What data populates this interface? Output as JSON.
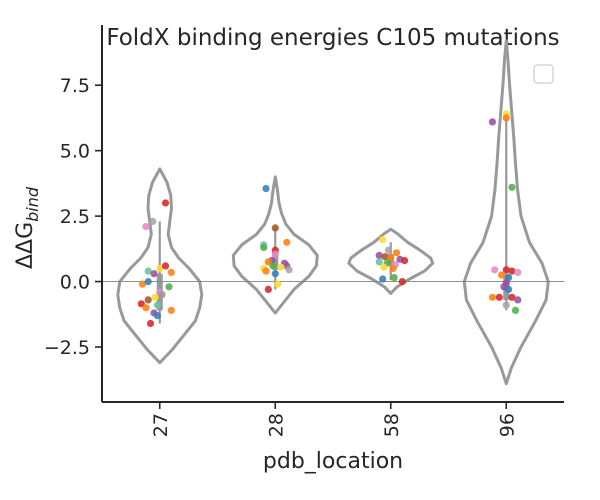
{
  "chart_data": {
    "type": "violin",
    "title": "FoldX binding energies C105 mutations",
    "xlabel": "pdb_location",
    "ylabel": "ΔΔG",
    "ylabel_subscript": "bind",
    "categories": [
      "27",
      "28",
      "58",
      "96"
    ],
    "y_ticks": [
      -2.5,
      0.0,
      2.5,
      5.0,
      7.5
    ],
    "y_tick_labels": [
      "−2.5",
      "0.0",
      "2.5",
      "5.0",
      "7.5"
    ],
    "ylim": [
      -4.6,
      9.8
    ],
    "reference_line_y": 0,
    "legend": "top-right, empty",
    "violin_color": "#999999",
    "violins": [
      {
        "category": "27",
        "profile": [
          [
            -3.1,
            0.0
          ],
          [
            -2.6,
            0.3
          ],
          [
            -2.0,
            0.6
          ],
          [
            -1.5,
            0.85
          ],
          [
            -1.0,
            0.95
          ],
          [
            -0.5,
            1.0
          ],
          [
            0.0,
            0.95
          ],
          [
            0.5,
            0.7
          ],
          [
            0.9,
            0.45
          ],
          [
            1.3,
            0.28
          ],
          [
            1.8,
            0.2
          ],
          [
            2.3,
            0.24
          ],
          [
            2.8,
            0.28
          ],
          [
            3.3,
            0.26
          ],
          [
            3.8,
            0.17
          ],
          [
            4.3,
            0.0
          ]
        ],
        "q1": -1.1,
        "q3": 0.3,
        "whisker_low": -1.6,
        "whisker_high": 2.3
      },
      {
        "category": "28",
        "profile": [
          [
            -1.2,
            0.0
          ],
          [
            -0.8,
            0.2
          ],
          [
            -0.3,
            0.45
          ],
          [
            0.2,
            0.8
          ],
          [
            0.6,
            0.98
          ],
          [
            1.0,
            1.0
          ],
          [
            1.4,
            0.8
          ],
          [
            1.8,
            0.45
          ],
          [
            2.2,
            0.25
          ],
          [
            2.6,
            0.15
          ],
          [
            3.0,
            0.09
          ],
          [
            3.5,
            0.05
          ],
          [
            4.0,
            0.0
          ]
        ],
        "q1": 0.45,
        "q3": 1.2,
        "whisker_low": -0.3,
        "whisker_high": 2.1
      },
      {
        "category": "58",
        "profile": [
          [
            -0.45,
            0.0
          ],
          [
            -0.2,
            0.15
          ],
          [
            0.1,
            0.45
          ],
          [
            0.4,
            0.8
          ],
          [
            0.7,
            1.0
          ],
          [
            0.9,
            0.95
          ],
          [
            1.2,
            0.7
          ],
          [
            1.5,
            0.4
          ],
          [
            1.8,
            0.18
          ],
          [
            2.0,
            0.0
          ]
        ],
        "q1": 0.65,
        "q3": 1.05,
        "whisker_low": 0.05,
        "whisker_high": 1.5
      },
      {
        "category": "96",
        "profile": [
          [
            -3.9,
            0.0
          ],
          [
            -3.3,
            0.12
          ],
          [
            -2.5,
            0.35
          ],
          [
            -1.5,
            0.7
          ],
          [
            -0.7,
            0.95
          ],
          [
            0.0,
            1.0
          ],
          [
            0.7,
            0.85
          ],
          [
            1.5,
            0.55
          ],
          [
            2.5,
            0.35
          ],
          [
            3.5,
            0.27
          ],
          [
            4.5,
            0.22
          ],
          [
            5.5,
            0.18
          ],
          [
            6.5,
            0.13
          ],
          [
            7.5,
            0.08
          ],
          [
            8.5,
            0.04
          ],
          [
            9.2,
            0.0
          ]
        ],
        "q1": -0.7,
        "q3": 0.3,
        "whisker_low": -1.1,
        "whisker_high": 6.3
      }
    ],
    "points": [
      {
        "category": "27",
        "jitter": -0.06,
        "y": 2.3,
        "color": "#a6a6a6"
      },
      {
        "category": "27",
        "jitter": -0.12,
        "y": 2.1,
        "color": "#e78ac3"
      },
      {
        "category": "27",
        "jitter": 0.05,
        "y": 3.0,
        "color": "#d62728"
      },
      {
        "category": "27",
        "jitter": 0.0,
        "y": 0.5,
        "color": "#ffd92f"
      },
      {
        "category": "27",
        "jitter": -0.1,
        "y": 0.4,
        "color": "#66c2a5"
      },
      {
        "category": "27",
        "jitter": 0.05,
        "y": 0.6,
        "color": "#d62728"
      },
      {
        "category": "27",
        "jitter": 0.1,
        "y": 0.35,
        "color": "#ff7f0e"
      },
      {
        "category": "27",
        "jitter": -0.05,
        "y": 0.3,
        "color": "#984ea3"
      },
      {
        "category": "27",
        "jitter": -0.15,
        "y": -0.1,
        "color": "#ff7f0e"
      },
      {
        "category": "27",
        "jitter": -0.1,
        "y": 0.0,
        "color": "#377eb8"
      },
      {
        "category": "27",
        "jitter": 0.08,
        "y": -0.2,
        "color": "#4daf4a"
      },
      {
        "category": "27",
        "jitter": 0.0,
        "y": -0.4,
        "color": "#e78ac3"
      },
      {
        "category": "27",
        "jitter": -0.04,
        "y": -0.6,
        "color": "#ffd92f"
      },
      {
        "category": "27",
        "jitter": -0.1,
        "y": -0.7,
        "color": "#a65628"
      },
      {
        "category": "27",
        "jitter": -0.16,
        "y": -0.85,
        "color": "#d62728"
      },
      {
        "category": "27",
        "jitter": -0.12,
        "y": -1.0,
        "color": "#ff7f0e"
      },
      {
        "category": "27",
        "jitter": -0.02,
        "y": -0.9,
        "color": "#66c2a5"
      },
      {
        "category": "27",
        "jitter": 0.1,
        "y": -1.1,
        "color": "#ff7f0e"
      },
      {
        "category": "27",
        "jitter": -0.05,
        "y": -1.2,
        "color": "#984ea3"
      },
      {
        "category": "27",
        "jitter": -0.02,
        "y": -1.3,
        "color": "#377eb8"
      },
      {
        "category": "27",
        "jitter": -0.08,
        "y": -1.6,
        "color": "#d62728"
      },
      {
        "category": "27",
        "jitter": 0.02,
        "y": -0.5,
        "color": "#999999"
      },
      {
        "category": "28",
        "jitter": -0.08,
        "y": 3.55,
        "color": "#377eb8"
      },
      {
        "category": "28",
        "jitter": 0.0,
        "y": 2.05,
        "color": "#a65628"
      },
      {
        "category": "28",
        "jitter": -0.1,
        "y": 1.4,
        "color": "#66c2a5"
      },
      {
        "category": "28",
        "jitter": -0.1,
        "y": 1.3,
        "color": "#4daf4a"
      },
      {
        "category": "28",
        "jitter": 0.0,
        "y": 1.2,
        "color": "#d62728"
      },
      {
        "category": "28",
        "jitter": 0.1,
        "y": 1.5,
        "color": "#ff7f0e"
      },
      {
        "category": "28",
        "jitter": 0.0,
        "y": 1.05,
        "color": "#e78ac3"
      },
      {
        "category": "28",
        "jitter": -0.03,
        "y": 0.8,
        "color": "#984ea3"
      },
      {
        "category": "28",
        "jitter": -0.06,
        "y": 0.75,
        "color": "#ff7f0e"
      },
      {
        "category": "28",
        "jitter": 0.08,
        "y": 0.7,
        "color": "#984ea3"
      },
      {
        "category": "28",
        "jitter": 0.1,
        "y": 0.6,
        "color": "#984ea3"
      },
      {
        "category": "28",
        "jitter": -0.02,
        "y": 0.6,
        "color": "#4daf4a"
      },
      {
        "category": "28",
        "jitter": 0.05,
        "y": 0.55,
        "color": "#ffd92f"
      },
      {
        "category": "28",
        "jitter": -0.1,
        "y": 0.5,
        "color": "#ffd92f"
      },
      {
        "category": "28",
        "jitter": 0.12,
        "y": 0.45,
        "color": "#a6a6a6"
      },
      {
        "category": "28",
        "jitter": -0.08,
        "y": 0.4,
        "color": "#ff7f0e"
      },
      {
        "category": "28",
        "jitter": 0.0,
        "y": 0.3,
        "color": "#377eb8"
      },
      {
        "category": "28",
        "jitter": -0.06,
        "y": -0.3,
        "color": "#d62728"
      },
      {
        "category": "28",
        "jitter": 0.02,
        "y": -0.1,
        "color": "#ffd92f"
      },
      {
        "category": "58",
        "jitter": -0.07,
        "y": 1.6,
        "color": "#ffd92f"
      },
      {
        "category": "58",
        "jitter": -0.02,
        "y": 1.2,
        "color": "#a6a6a6"
      },
      {
        "category": "58",
        "jitter": 0.05,
        "y": 1.1,
        "color": "#ff7f0e"
      },
      {
        "category": "58",
        "jitter": -0.1,
        "y": 1.0,
        "color": "#984ea3"
      },
      {
        "category": "58",
        "jitter": -0.05,
        "y": 0.95,
        "color": "#a65628"
      },
      {
        "category": "58",
        "jitter": 0.0,
        "y": 0.9,
        "color": "#ff7f0e"
      },
      {
        "category": "58",
        "jitter": 0.08,
        "y": 0.85,
        "color": "#984ea3"
      },
      {
        "category": "58",
        "jitter": 0.12,
        "y": 0.8,
        "color": "#d62728"
      },
      {
        "category": "58",
        "jitter": -0.1,
        "y": 0.75,
        "color": "#66c2a5"
      },
      {
        "category": "58",
        "jitter": -0.03,
        "y": 0.7,
        "color": "#4daf4a"
      },
      {
        "category": "58",
        "jitter": 0.04,
        "y": 0.65,
        "color": "#e78ac3"
      },
      {
        "category": "58",
        "jitter": -0.06,
        "y": 0.55,
        "color": "#ffd92f"
      },
      {
        "category": "58",
        "jitter": 0.02,
        "y": 0.5,
        "color": "#ff7f0e"
      },
      {
        "category": "58",
        "jitter": -0.07,
        "y": 0.1,
        "color": "#377eb8"
      },
      {
        "category": "58",
        "jitter": 0.03,
        "y": 0.15,
        "color": "#4daf4a"
      },
      {
        "category": "58",
        "jitter": 0.1,
        "y": 0.0,
        "color": "#d62728"
      },
      {
        "category": "96",
        "jitter": 0.0,
        "y": 6.4,
        "color": "#ffd92f"
      },
      {
        "category": "96",
        "jitter": 0.0,
        "y": 6.25,
        "color": "#ff7f0e"
      },
      {
        "category": "96",
        "jitter": -0.12,
        "y": 6.1,
        "color": "#984ea3"
      },
      {
        "category": "96",
        "jitter": 0.05,
        "y": 3.6,
        "color": "#4daf4a"
      },
      {
        "category": "96",
        "jitter": -0.1,
        "y": 0.45,
        "color": "#e78ac3"
      },
      {
        "category": "96",
        "jitter": 0.0,
        "y": 0.45,
        "color": "#d62728"
      },
      {
        "category": "96",
        "jitter": 0.05,
        "y": 0.4,
        "color": "#d62728"
      },
      {
        "category": "96",
        "jitter": 0.1,
        "y": 0.35,
        "color": "#e78ac3"
      },
      {
        "category": "96",
        "jitter": -0.04,
        "y": 0.25,
        "color": "#ff7f0e"
      },
      {
        "category": "96",
        "jitter": 0.02,
        "y": 0.15,
        "color": "#377eb8"
      },
      {
        "category": "96",
        "jitter": 0.0,
        "y": -0.05,
        "color": "#984ea3"
      },
      {
        "category": "96",
        "jitter": -0.02,
        "y": -0.2,
        "color": "#984ea3"
      },
      {
        "category": "96",
        "jitter": 0.02,
        "y": -0.3,
        "color": "#377eb8"
      },
      {
        "category": "96",
        "jitter": -0.12,
        "y": -0.6,
        "color": "#ff7f0e"
      },
      {
        "category": "96",
        "jitter": -0.06,
        "y": -0.6,
        "color": "#d62728"
      },
      {
        "category": "96",
        "jitter": 0.05,
        "y": -0.6,
        "color": "#d62728"
      },
      {
        "category": "96",
        "jitter": 0.1,
        "y": -0.7,
        "color": "#984ea3"
      },
      {
        "category": "96",
        "jitter": 0.0,
        "y": -0.9,
        "color": "#a6a6a6"
      },
      {
        "category": "96",
        "jitter": 0.08,
        "y": -1.1,
        "color": "#4daf4a"
      }
    ]
  }
}
